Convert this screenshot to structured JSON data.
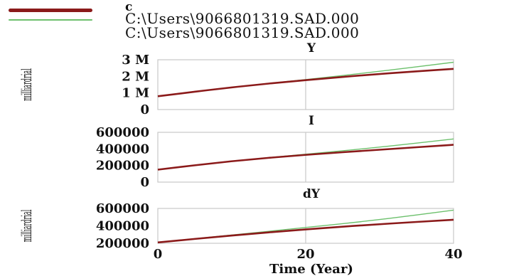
{
  "legend": {
    "variable": "c",
    "runs": [
      {
        "label": "C:\\Users\\9066801319.SAD.000",
        "color": "#8B1A1A"
      },
      {
        "label": "C:\\Users\\9066801319.SAD.000",
        "color": "#6cc06c"
      }
    ]
  },
  "xaxis": {
    "label": "Time (Year)",
    "ticks": [
      "0",
      "20",
      "40"
    ],
    "range": [
      0,
      40
    ]
  },
  "chart_data": [
    {
      "type": "line",
      "title": "Y",
      "ylabel": "milliardrial",
      "ylim": [
        0,
        3000000
      ],
      "yticks": [
        0,
        1000000,
        2000000,
        3000000
      ],
      "ytick_labels": [
        "0",
        "1 M",
        "2 M",
        "3 M"
      ],
      "x": [
        0,
        10,
        20,
        30,
        40
      ],
      "series": [
        {
          "name": "C:\\Users\\9066801319.SAD.000",
          "color": "#8B1A1A",
          "values": [
            800000,
            1350000,
            1780000,
            2150000,
            2450000
          ]
        },
        {
          "name": "C:\\Users\\9066801319.SAD.000",
          "color": "#6cc06c",
          "values": [
            800000,
            1350000,
            1800000,
            2300000,
            2850000
          ]
        }
      ]
    },
    {
      "type": "line",
      "title": "I",
      "ylabel": "",
      "ylim": [
        0,
        600000
      ],
      "yticks": [
        0,
        200000,
        400000,
        600000
      ],
      "ytick_labels": [
        "0",
        "200000",
        "400000",
        "600000"
      ],
      "x": [
        0,
        10,
        20,
        30,
        40
      ],
      "series": [
        {
          "name": "C:\\Users\\9066801319.SAD.000",
          "color": "#8B1A1A",
          "values": [
            150000,
            255000,
            330000,
            390000,
            450000
          ]
        },
        {
          "name": "C:\\Users\\9066801319.SAD.000",
          "color": "#6cc06c",
          "values": [
            150000,
            255000,
            335000,
            420000,
            520000
          ]
        }
      ]
    },
    {
      "type": "line",
      "title": "dY",
      "ylabel": "milliardrial",
      "ylim": [
        200000,
        600000
      ],
      "yticks": [
        200000,
        400000,
        600000
      ],
      "ytick_labels": [
        "200000",
        "400000",
        "600000"
      ],
      "x": [
        0,
        10,
        20,
        30,
        40
      ],
      "series": [
        {
          "name": "C:\\Users\\9066801319.SAD.000",
          "color": "#8B1A1A",
          "values": [
            210000,
            290000,
            360000,
            420000,
            470000
          ]
        },
        {
          "name": "C:\\Users\\9066801319.SAD.000",
          "color": "#6cc06c",
          "values": [
            210000,
            295000,
            380000,
            470000,
            580000
          ]
        }
      ]
    }
  ]
}
